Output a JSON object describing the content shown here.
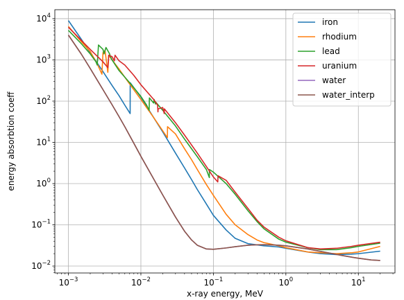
{
  "chart_data": {
    "type": "line",
    "title": "",
    "xlabel": "x-ray energy, MeV",
    "ylabel": "energy absorbtion coeff",
    "x_scale": "log",
    "y_scale": "log",
    "xlim": [
      0.00065,
      32
    ],
    "ylim": [
      0.0068,
      16500
    ],
    "x_ticks": [
      {
        "value": 0.001,
        "base": "10",
        "exp": "−3"
      },
      {
        "value": 0.01,
        "base": "10",
        "exp": "−2"
      },
      {
        "value": 0.1,
        "base": "10",
        "exp": "−1"
      },
      {
        "value": 1,
        "base": "10",
        "exp": "0"
      },
      {
        "value": 10,
        "base": "10",
        "exp": "1"
      }
    ],
    "y_ticks": [
      {
        "value": 0.01,
        "base": "10",
        "exp": "−2"
      },
      {
        "value": 0.1,
        "base": "10",
        "exp": "−1"
      },
      {
        "value": 1,
        "base": "10",
        "exp": "0"
      },
      {
        "value": 10,
        "base": "10",
        "exp": "1"
      },
      {
        "value": 100,
        "base": "10",
        "exp": "2"
      },
      {
        "value": 1000,
        "base": "10",
        "exp": "3"
      },
      {
        "value": 10000,
        "base": "10",
        "exp": "4"
      }
    ],
    "grid": true,
    "legend_position": "top-right",
    "series": [
      {
        "name": "iron",
        "color": "#1f77b4",
        "points": [
          [
            0.001,
            9000
          ],
          [
            0.0015,
            3200
          ],
          [
            0.002,
            1500
          ],
          [
            0.003,
            520
          ],
          [
            0.004,
            240
          ],
          [
            0.005,
            135
          ],
          [
            0.006,
            80
          ],
          [
            0.00711,
            50
          ],
          [
            0.00712,
            280
          ],
          [
            0.01,
            125
          ],
          [
            0.015,
            40
          ],
          [
            0.02,
            18
          ],
          [
            0.03,
            5.5
          ],
          [
            0.04,
            2.4
          ],
          [
            0.05,
            1.25
          ],
          [
            0.06,
            0.72
          ],
          [
            0.08,
            0.32
          ],
          [
            0.1,
            0.17
          ],
          [
            0.15,
            0.075
          ],
          [
            0.2,
            0.047
          ],
          [
            0.3,
            0.035
          ],
          [
            0.5,
            0.031
          ],
          [
            0.8,
            0.029
          ],
          [
            1,
            0.027
          ],
          [
            2,
            0.022
          ],
          [
            3,
            0.02
          ],
          [
            5,
            0.019
          ],
          [
            8,
            0.0195
          ],
          [
            10,
            0.02
          ],
          [
            20,
            0.023
          ]
        ]
      },
      {
        "name": "rhodium",
        "color": "#ff7f0e",
        "points": [
          [
            0.001,
            6500
          ],
          [
            0.0015,
            2800
          ],
          [
            0.002,
            1600
          ],
          [
            0.0025,
            800
          ],
          [
            0.0029,
            450
          ],
          [
            0.003,
            1500
          ],
          [
            0.0032,
            1700
          ],
          [
            0.0035,
            500
          ],
          [
            0.0036,
            1300
          ],
          [
            0.004,
            1000
          ],
          [
            0.005,
            600
          ],
          [
            0.007,
            260
          ],
          [
            0.01,
            110
          ],
          [
            0.015,
            40
          ],
          [
            0.0232,
            13
          ],
          [
            0.0233,
            24
          ],
          [
            0.03,
            16
          ],
          [
            0.04,
            7
          ],
          [
            0.05,
            3.8
          ],
          [
            0.06,
            2.2
          ],
          [
            0.08,
            0.95
          ],
          [
            0.1,
            0.52
          ],
          [
            0.15,
            0.18
          ],
          [
            0.2,
            0.1
          ],
          [
            0.3,
            0.058
          ],
          [
            0.4,
            0.043
          ],
          [
            0.5,
            0.037
          ],
          [
            0.8,
            0.031
          ],
          [
            1,
            0.028
          ],
          [
            2,
            0.022
          ],
          [
            3,
            0.021
          ],
          [
            5,
            0.02
          ],
          [
            8,
            0.021
          ],
          [
            10,
            0.022
          ],
          [
            20,
            0.03
          ]
        ]
      },
      {
        "name": "lead",
        "color": "#2ca02c",
        "points": [
          [
            0.001,
            5200
          ],
          [
            0.0015,
            2500
          ],
          [
            0.002,
            1400
          ],
          [
            0.0024,
            900
          ],
          [
            0.0025,
            750
          ],
          [
            0.0026,
            2300
          ],
          [
            0.003,
            1800
          ],
          [
            0.0031,
            1400
          ],
          [
            0.0033,
            2000
          ],
          [
            0.0037,
            1400
          ],
          [
            0.0038,
            1200
          ],
          [
            0.004,
            1000
          ],
          [
            0.005,
            550
          ],
          [
            0.007,
            280
          ],
          [
            0.01,
            130
          ],
          [
            0.012,
            80
          ],
          [
            0.013,
            60
          ],
          [
            0.0131,
            120
          ],
          [
            0.015,
            90
          ],
          [
            0.0152,
            110
          ],
          [
            0.0159,
            85
          ],
          [
            0.016,
            95
          ],
          [
            0.02,
            60
          ],
          [
            0.03,
            25
          ],
          [
            0.04,
            12
          ],
          [
            0.06,
            4.5
          ],
          [
            0.08,
            2.2
          ],
          [
            0.088,
            1.4
          ],
          [
            0.0881,
            2.2
          ],
          [
            0.1,
            1.9
          ],
          [
            0.15,
            1
          ],
          [
            0.2,
            0.55
          ],
          [
            0.3,
            0.22
          ],
          [
            0.4,
            0.12
          ],
          [
            0.5,
            0.08
          ],
          [
            0.8,
            0.045
          ],
          [
            1,
            0.038
          ],
          [
            2,
            0.028
          ],
          [
            3,
            0.025
          ],
          [
            5,
            0.025
          ],
          [
            8,
            0.028
          ],
          [
            10,
            0.03
          ],
          [
            20,
            0.036
          ]
        ]
      },
      {
        "name": "uranium",
        "color": "#d62728",
        "points": [
          [
            0.001,
            6200
          ],
          [
            0.0015,
            3000
          ],
          [
            0.002,
            1800
          ],
          [
            0.003,
            900
          ],
          [
            0.0035,
            650
          ],
          [
            0.0036,
            1300
          ],
          [
            0.004,
            1200
          ],
          [
            0.0043,
            950
          ],
          [
            0.0044,
            1300
          ],
          [
            0.005,
            950
          ],
          [
            0.006,
            750
          ],
          [
            0.008,
            420
          ],
          [
            0.01,
            250
          ],
          [
            0.015,
            110
          ],
          [
            0.017,
            80
          ],
          [
            0.0172,
            55
          ],
          [
            0.0173,
            65
          ],
          [
            0.02,
            70
          ],
          [
            0.021,
            50
          ],
          [
            0.0211,
            65
          ],
          [
            0.03,
            30
          ],
          [
            0.04,
            15
          ],
          [
            0.06,
            5.5
          ],
          [
            0.08,
            2.6
          ],
          [
            0.1,
            1.45
          ],
          [
            0.115,
            1.1
          ],
          [
            0.116,
            1.55
          ],
          [
            0.15,
            1.2
          ],
          [
            0.2,
            0.62
          ],
          [
            0.3,
            0.25
          ],
          [
            0.4,
            0.13
          ],
          [
            0.5,
            0.088
          ],
          [
            0.8,
            0.05
          ],
          [
            1,
            0.041
          ],
          [
            2,
            0.028
          ],
          [
            3,
            0.026
          ],
          [
            5,
            0.027
          ],
          [
            8,
            0.03
          ],
          [
            10,
            0.032
          ],
          [
            20,
            0.038
          ]
        ]
      },
      {
        "name": "water",
        "color": "#9467bd",
        "points": [
          [
            0.001,
            4000
          ],
          [
            0.0015,
            1400
          ],
          [
            0.002,
            620
          ],
          [
            0.003,
            190
          ],
          [
            0.004,
            82
          ],
          [
            0.005,
            42
          ],
          [
            0.006,
            24
          ],
          [
            0.008,
            9.5
          ],
          [
            0.01,
            4.6
          ],
          [
            0.015,
            1.3
          ],
          [
            0.02,
            0.53
          ],
          [
            0.03,
            0.155
          ],
          [
            0.04,
            0.07
          ],
          [
            0.05,
            0.043
          ],
          [
            0.06,
            0.032
          ],
          [
            0.08,
            0.026
          ],
          [
            0.1,
            0.0255
          ],
          [
            0.15,
            0.0275
          ],
          [
            0.2,
            0.0295
          ],
          [
            0.3,
            0.032
          ],
          [
            0.4,
            0.0328
          ],
          [
            0.5,
            0.033
          ],
          [
            0.6,
            0.0328
          ],
          [
            0.8,
            0.032
          ],
          [
            1,
            0.031
          ],
          [
            1.5,
            0.028
          ],
          [
            2,
            0.026
          ],
          [
            3,
            0.0227
          ],
          [
            4,
            0.0207
          ],
          [
            5,
            0.0192
          ],
          [
            6,
            0.018
          ],
          [
            8,
            0.0165
          ],
          [
            10,
            0.0155
          ],
          [
            15,
            0.0141
          ],
          [
            20,
            0.0137
          ]
        ]
      },
      {
        "name": "water_interp",
        "color": "#8c564b",
        "points": [
          [
            0.001,
            4000
          ],
          [
            0.0015,
            1400
          ],
          [
            0.002,
            620
          ],
          [
            0.003,
            190
          ],
          [
            0.004,
            82
          ],
          [
            0.005,
            42
          ],
          [
            0.006,
            24
          ],
          [
            0.008,
            9.5
          ],
          [
            0.01,
            4.6
          ],
          [
            0.015,
            1.3
          ],
          [
            0.02,
            0.53
          ],
          [
            0.03,
            0.155
          ],
          [
            0.04,
            0.07
          ],
          [
            0.05,
            0.043
          ],
          [
            0.06,
            0.032
          ],
          [
            0.08,
            0.026
          ],
          [
            0.1,
            0.0255
          ],
          [
            0.15,
            0.0275
          ],
          [
            0.2,
            0.0295
          ],
          [
            0.3,
            0.032
          ],
          [
            0.4,
            0.0328
          ],
          [
            0.5,
            0.033
          ],
          [
            0.6,
            0.0328
          ],
          [
            0.8,
            0.032
          ],
          [
            1,
            0.031
          ],
          [
            1.5,
            0.028
          ],
          [
            2,
            0.026
          ],
          [
            3,
            0.0227
          ],
          [
            4,
            0.0207
          ],
          [
            5,
            0.0192
          ],
          [
            6,
            0.018
          ],
          [
            8,
            0.0165
          ],
          [
            10,
            0.0155
          ],
          [
            15,
            0.0141
          ],
          [
            20,
            0.0137
          ]
        ]
      }
    ]
  }
}
